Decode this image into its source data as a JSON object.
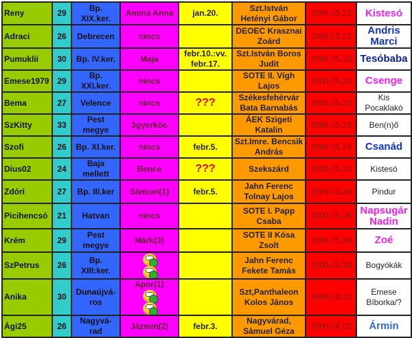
{
  "rows": [
    {
      "name": "Reny",
      "age": "29",
      "city": "Bp. XIX.ker.",
      "kids": "Amina Anna",
      "date": "jan.20.",
      "hospital": "Szt.István Hetényi Gábor",
      "due": "2009.05.22",
      "baby": "Kistesó",
      "baby_style": "magenta"
    },
    {
      "name": "Adraci",
      "age": "26",
      "city": "Debrecen",
      "kids": "nincs",
      "date": "",
      "hospital": "DEOEC Krasznai Zoárd",
      "due": "2009.05.22",
      "baby": "Andris Marci",
      "baby_style": "blue"
    },
    {
      "name": "Pumuklii",
      "age": "30",
      "city": "Bp. IV.ker.",
      "kids": "Maja",
      "date": "febr.10.:vv. febr.17.",
      "hospital": "Szt.István Boros Judit",
      "due": "2009.05.23",
      "baby": "Tesóbaba",
      "baby_style": "darkblue"
    },
    {
      "name": "Emese1979",
      "age": "29",
      "city": "Bp. XXI.ker.",
      "kids": "nincs",
      "date": "",
      "hospital": "SOTE II. Vígh Lajos",
      "due": "2009.05.23",
      "baby": "Csenge",
      "baby_style": "magenta"
    },
    {
      "name": "Bema",
      "age": "27",
      "city": "Velence",
      "kids": "nincs",
      "date": "???",
      "hospital": "Székesfehérvár Bata Barnabás",
      "due": "2009.05.23",
      "baby": "Kis Pocaklakó",
      "baby_style": "normal"
    },
    {
      "name": "SzKitty",
      "age": "33",
      "city": "Pest megye",
      "kids": "3gyerkőc",
      "date": "",
      "hospital": "ÁEK Szigeti Katalin",
      "due": "2009.05.23",
      "baby": "Ben(n)ő",
      "baby_style": "normal"
    },
    {
      "name": "Szofi",
      "age": "26",
      "city": "Bp. XI.ker.",
      "kids": "nincs",
      "date": "febr.5.",
      "hospital": "Szt.Imre. Bencsik András",
      "due": "2009.05.24",
      "baby": "Csanád",
      "baby_style": "blue"
    },
    {
      "name": "Dius02",
      "age": "24",
      "city": "Baja mellett",
      "kids": "Bence",
      "date": "???",
      "hospital": "Szekszárd",
      "due": "2009.05.24",
      "baby": "Kistesó",
      "baby_style": "normal"
    },
    {
      "name": "Zdóri",
      "age": "27",
      "city": "Bp. III.ker",
      "kids": "Sámuel(1)",
      "date": "febr.5.",
      "hospital": "Jahn Ferenc Tolnay Lajos",
      "due": "2009.05.26",
      "baby": "Pindur",
      "baby_style": "normal"
    },
    {
      "name": "Picihencsó",
      "age": "21",
      "city": "Hatvan",
      "kids": "nincs",
      "date": "",
      "hospital": "SOTE I. Papp Csaba",
      "due": "2009.05.26",
      "baby": "Napsugár Nadin",
      "baby_style": "magenta"
    },
    {
      "name": "Krém",
      "age": "29",
      "city": "Pest megye",
      "kids": "Márk(3)",
      "date": "",
      "hospital": "SOTE II Kósa Zsolt",
      "due": "2009.05.30",
      "baby": "Zoé",
      "baby_style": "magenta"
    },
    {
      "name": "SzPetrus",
      "age": "26",
      "city": "Bp. XIII:ker.",
      "kids": "",
      "kids_icons": 2,
      "date": "",
      "hospital": "Jahn Ferenc Fekete Tamás",
      "due": "2009.05.28",
      "baby": "Bogyókák",
      "baby_style": "normal"
    },
    {
      "name": "Anika",
      "age": "30",
      "city": "Dunaújvá-ros",
      "kids": "Apor(1)",
      "kids_icons": 2,
      "date": "",
      "hospital": "Szt,Panthaleon Kolos János",
      "due": "2009.06.01",
      "baby": "Emese Bíborka/?",
      "baby_style": "normal"
    },
    {
      "name": "Ági25",
      "age": "26",
      "city": "Nagyvá-rad",
      "kids": "Jázmin(2)",
      "date": "febr.3.",
      "hospital": "Nagyvárad, Sámuel Géza",
      "due": "2009.06.02",
      "baby": "Ármin",
      "baby_style": "lightblue"
    }
  ],
  "icons": {
    "kids_icon": "smiley-pacifier-icon"
  },
  "colors": {
    "name": "#99cc00",
    "age": "#33cccc",
    "city": "#3366ff",
    "kids": "#ff00ff",
    "date": "#ffff00",
    "hospital": "#ff9900",
    "due": "#ff0000",
    "baby": "#ffffff"
  }
}
